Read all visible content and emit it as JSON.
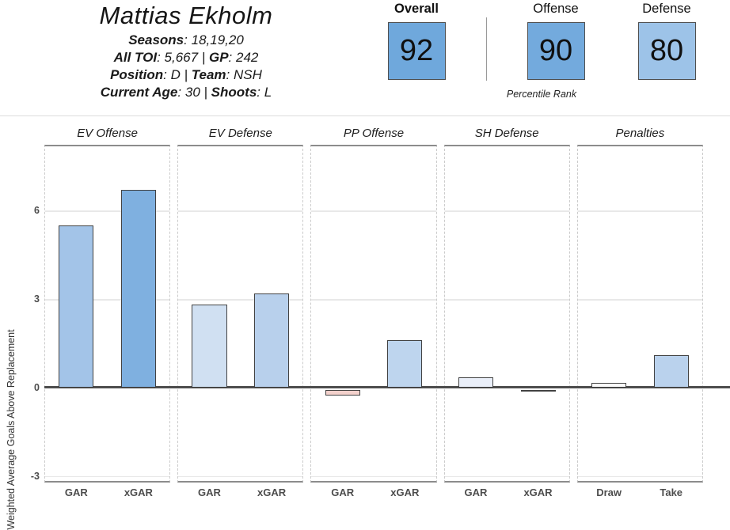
{
  "player": {
    "name": "Mattias Ekholm",
    "colon": ":",
    "pipe": "|",
    "seasons_label": "Seasons",
    "seasons_value": "18,19,20",
    "toi_label": "All TOI",
    "toi_value": "5,667",
    "gp_label": "GP",
    "gp_value": "242",
    "position_label": "Position",
    "position_value": "D",
    "team_label": "Team",
    "team_value": "NSH",
    "age_label": "Current Age",
    "age_value": "30",
    "shoots_label": "Shoots",
    "shoots_value": "L"
  },
  "percentiles": {
    "caption": "Percentile Rank",
    "overall": {
      "label": "Overall",
      "value": "92",
      "color": "#6fa8dc"
    },
    "offense": {
      "label": "Offense",
      "value": "90",
      "color": "#73aadd"
    },
    "defense": {
      "label": "Defense",
      "value": "80",
      "color": "#9dc3e8"
    }
  },
  "chart_data": {
    "type": "bar",
    "ylabel": "Weighted Average Goals Above Replacement",
    "yticks": [
      6,
      3,
      0,
      -3
    ],
    "ylim": [
      -3.2,
      8.2
    ],
    "grid": true,
    "panels": [
      {
        "title": "EV Offense",
        "categories": [
          "GAR",
          "xGAR"
        ],
        "bars": [
          {
            "label": "GAR",
            "value": 5.5,
            "color": "#a3c4e8"
          },
          {
            "label": "xGAR",
            "value": 6.7,
            "color": "#7fb0e0"
          }
        ]
      },
      {
        "title": "EV Defense",
        "categories": [
          "GAR",
          "xGAR"
        ],
        "bars": [
          {
            "label": "GAR",
            "value": 2.8,
            "color": "#d0e0f2"
          },
          {
            "label": "xGAR",
            "value": 3.2,
            "color": "#b8d0ec"
          }
        ]
      },
      {
        "title": "PP Offense",
        "categories": [
          "GAR",
          "xGAR"
        ],
        "bars": [
          {
            "label": "GAR",
            "value": -0.2,
            "color": "#f3d1cc"
          },
          {
            "label": "xGAR",
            "value": 1.6,
            "color": "#bed5ee"
          }
        ]
      },
      {
        "title": "SH Defense",
        "categories": [
          "GAR",
          "xGAR"
        ],
        "bars": [
          {
            "label": "GAR",
            "value": 0.35,
            "color": "#eaeff9"
          },
          {
            "label": "xGAR",
            "value": -0.05,
            "color": "#e6e6e6"
          }
        ]
      },
      {
        "title": "Penalties",
        "categories": [
          "Draw",
          "Take"
        ],
        "bars": [
          {
            "label": "Draw",
            "value": 0.15,
            "color": "#fbfbfb"
          },
          {
            "label": "Take",
            "value": 1.1,
            "color": "#bad2ed"
          }
        ]
      }
    ]
  }
}
